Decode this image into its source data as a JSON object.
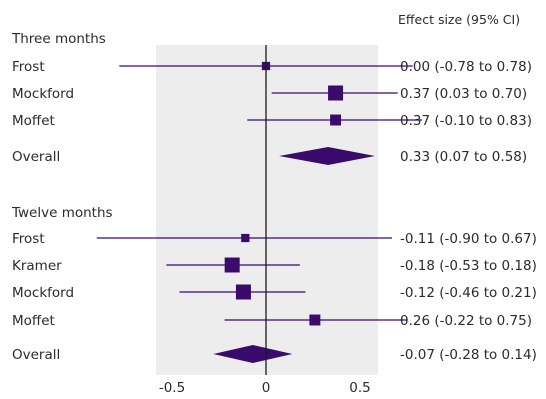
{
  "chart_data": {
    "type": "forest",
    "column_header": "Effect size (95% CI)",
    "x_ticks": [
      "-0.5",
      "0",
      "0.5"
    ],
    "x_tick_values": [
      -0.5,
      0,
      0.5
    ],
    "xlim": [
      -0.95,
      0.95
    ],
    "grid": false,
    "colors": {
      "panel": "#ededed",
      "mark": "#3b0a6d",
      "axis": "#1b1b1b",
      "text": "#2b2b2b"
    },
    "groups": [
      {
        "label": "Three months",
        "studies": [
          {
            "name": "Frost",
            "estimate": 0.0,
            "lower": -0.78,
            "upper": 0.78,
            "weight": 0.25,
            "label": "0.00 (-0.78 to 0.78)"
          },
          {
            "name": "Mockford",
            "estimate": 0.37,
            "lower": 0.03,
            "upper": 0.7,
            "weight": 1.0,
            "label": "0.37 (0.03 to 0.70)"
          },
          {
            "name": "Moffet",
            "estimate": 0.37,
            "lower": -0.1,
            "upper": 0.83,
            "weight": 0.55,
            "label": "0.37 (-0.10 to 0.83)"
          }
        ],
        "overall": {
          "name": "Overall",
          "estimate": 0.33,
          "lower": 0.07,
          "upper": 0.58,
          "label": "0.33 (0.07 to 0.58)"
        }
      },
      {
        "label": "Twelve months",
        "studies": [
          {
            "name": "Frost",
            "estimate": -0.11,
            "lower": -0.9,
            "upper": 0.67,
            "weight": 0.25,
            "label": "-0.11 (-0.90 to 0.67)"
          },
          {
            "name": "Kramer",
            "estimate": -0.18,
            "lower": -0.53,
            "upper": 0.18,
            "weight": 1.0,
            "label": "-0.18 (-0.53 to 0.18)"
          },
          {
            "name": "Mockford",
            "estimate": -0.12,
            "lower": -0.46,
            "upper": 0.21,
            "weight": 1.0,
            "label": "-0.12 (-0.46 to 0.21)"
          },
          {
            "name": "Moffet",
            "estimate": 0.26,
            "lower": -0.22,
            "upper": 0.75,
            "weight": 0.55,
            "label": "0.26 (-0.22 to 0.75)"
          }
        ],
        "overall": {
          "name": "Overall",
          "estimate": -0.07,
          "lower": -0.28,
          "upper": 0.14,
          "label": "-0.07 (-0.28 to 0.14)"
        }
      }
    ]
  }
}
